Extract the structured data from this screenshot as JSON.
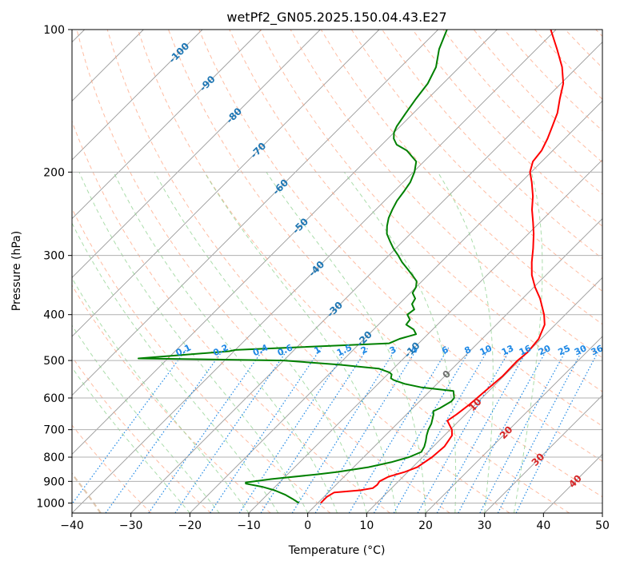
{
  "chart_data": {
    "type": "line",
    "chart_kind": "skew-t log-p diagram",
    "title": "wetPf2_GN05.2025.150.04.43.E27",
    "xlabel": "Temperature (°C)",
    "ylabel": "Pressure (hPa)",
    "xlim": [
      -40,
      50
    ],
    "ylim": [
      1050,
      100
    ],
    "y_scale": "log",
    "grid": true,
    "x_ticks": [
      -40,
      -30,
      -20,
      -10,
      0,
      10,
      20,
      30,
      40,
      50
    ],
    "x_tick_labels": [
      "−40",
      "−30",
      "−20",
      "−10",
      "0",
      "10",
      "20",
      "30",
      "40",
      "50"
    ],
    "y_ticks": [
      1000,
      900,
      800,
      700,
      600,
      500,
      400,
      300,
      200,
      100
    ],
    "y_tick_labels": [
      "1000",
      "900",
      "800",
      "700",
      "600",
      "500",
      "400",
      "300",
      "200",
      "100"
    ],
    "series": [
      {
        "role": "temperature",
        "color": "#ff0000",
        "points": [
          [
            1000,
            0.5
          ],
          [
            970,
            0.5
          ],
          [
            950,
            1.0
          ],
          [
            940,
            5.0
          ],
          [
            930,
            6.8
          ],
          [
            915,
            7.0
          ],
          [
            900,
            6.8
          ],
          [
            880,
            7.5
          ],
          [
            860,
            9.5
          ],
          [
            840,
            10.8
          ],
          [
            800,
            11.6
          ],
          [
            760,
            11.9
          ],
          [
            720,
            11.3
          ],
          [
            700,
            10.3
          ],
          [
            670,
            8.0
          ],
          [
            650,
            8.5
          ],
          [
            620,
            9.0
          ],
          [
            600,
            9.2
          ],
          [
            570,
            9.5
          ],
          [
            540,
            9.8
          ],
          [
            500,
            9.7
          ],
          [
            480,
            10.0
          ],
          [
            450,
            9.6
          ],
          [
            420,
            8.2
          ],
          [
            400,
            6.4
          ],
          [
            370,
            3.0
          ],
          [
            350,
            0.2
          ],
          [
            330,
            -2.4
          ],
          [
            310,
            -4.6
          ],
          [
            290,
            -6.7
          ],
          [
            270,
            -9.1
          ],
          [
            255,
            -11.2
          ],
          [
            240,
            -13.5
          ],
          [
            225,
            -15.6
          ],
          [
            210,
            -18.2
          ],
          [
            200,
            -20.2
          ],
          [
            190,
            -21.5
          ],
          [
            180,
            -21.9
          ],
          [
            170,
            -22.9
          ],
          [
            160,
            -24.2
          ],
          [
            150,
            -25.6
          ],
          [
            140,
            -27.6
          ],
          [
            130,
            -29.6
          ],
          [
            120,
            -32.6
          ],
          [
            110,
            -36.5
          ],
          [
            100,
            -40.9
          ]
        ]
      },
      {
        "role": "dewpoint",
        "color": "#008000",
        "points": [
          [
            1000,
            -3.2
          ],
          [
            980,
            -5.0
          ],
          [
            960,
            -7.0
          ],
          [
            940,
            -9.5
          ],
          [
            925,
            -12.0
          ],
          [
            910,
            -15.5
          ],
          [
            905,
            -15.7
          ],
          [
            890,
            -12.0
          ],
          [
            870,
            -5.0
          ],
          [
            860,
            -2.0
          ],
          [
            840,
            2.5
          ],
          [
            820,
            5.5
          ],
          [
            800,
            7.7
          ],
          [
            780,
            8.9
          ],
          [
            760,
            8.5
          ],
          [
            740,
            7.8
          ],
          [
            720,
            7.0
          ],
          [
            700,
            6.3
          ],
          [
            680,
            5.8
          ],
          [
            650,
            4.6
          ],
          [
            640,
            4.0
          ],
          [
            630,
            4.6
          ],
          [
            610,
            5.4
          ],
          [
            600,
            5.3
          ],
          [
            580,
            4.0
          ],
          [
            570,
            -2.0
          ],
          [
            560,
            -5.5
          ],
          [
            550,
            -8.0
          ],
          [
            545,
            -8.8
          ],
          [
            535,
            -9.3
          ],
          [
            530,
            -10.0
          ],
          [
            520,
            -12.5
          ],
          [
            510,
            -20.0
          ],
          [
            500,
            -30.0
          ],
          [
            495,
            -55.0
          ],
          [
            478,
            -40.8
          ],
          [
            475,
            -40.0
          ],
          [
            460,
            -15.0
          ],
          [
            450,
            -14.0
          ],
          [
            440,
            -12.0
          ],
          [
            430,
            -13.2
          ],
          [
            420,
            -15.3
          ],
          [
            410,
            -15.5
          ],
          [
            400,
            -16.8
          ],
          [
            390,
            -16.5
          ],
          [
            380,
            -17.8
          ],
          [
            370,
            -18.2
          ],
          [
            360,
            -19.6
          ],
          [
            350,
            -20.0
          ],
          [
            340,
            -20.9
          ],
          [
            330,
            -22.7
          ],
          [
            320,
            -24.6
          ],
          [
            310,
            -26.6
          ],
          [
            300,
            -28.4
          ],
          [
            290,
            -30.4
          ],
          [
            280,
            -32.2
          ],
          [
            270,
            -34.0
          ],
          [
            260,
            -35.3
          ],
          [
            250,
            -36.4
          ],
          [
            240,
            -37.2
          ],
          [
            230,
            -37.9
          ],
          [
            220,
            -38.3
          ],
          [
            210,
            -38.8
          ],
          [
            200,
            -39.8
          ],
          [
            190,
            -41.3
          ],
          [
            180,
            -44.8
          ],
          [
            175,
            -47.5
          ],
          [
            170,
            -49.0
          ],
          [
            165,
            -50.0
          ],
          [
            160,
            -50.6
          ],
          [
            150,
            -51.3
          ],
          [
            140,
            -52.0
          ],
          [
            130,
            -52.6
          ],
          [
            120,
            -54.0
          ],
          [
            110,
            -56.5
          ],
          [
            100,
            -58.5
          ]
        ]
      }
    ],
    "dry_adiabats_theta_c": [
      -30,
      -20,
      -10,
      0,
      10,
      20,
      30,
      40,
      50,
      60,
      70,
      80,
      90,
      100,
      110,
      120,
      130,
      140,
      150,
      160,
      170,
      180,
      190,
      200
    ],
    "moist_adiabats_c": [
      -20,
      -15,
      -10,
      -5,
      0,
      5,
      10,
      15,
      20,
      25,
      30,
      35
    ],
    "mixing_ratio_lines": {
      "labels": [
        "0.1",
        "0.2",
        "0.4",
        "0.6",
        "1",
        "1.5",
        "2",
        "3",
        "4",
        "6",
        "8",
        "10",
        "13",
        "16",
        "20",
        "25",
        "30",
        "36"
      ],
      "values": [
        0.1,
        0.2,
        0.4,
        0.6,
        1,
        1.5,
        2,
        3,
        4,
        6,
        8,
        10,
        13,
        16,
        20,
        25,
        30,
        36
      ],
      "label_pressure_hpa": 480,
      "top_hpa": 470,
      "color": "#1e88e5"
    },
    "isotherm_labels": {
      "blue": [
        "-100",
        "-90",
        "-80",
        "-70",
        "-60",
        "-50",
        "-40",
        "-30",
        "-20",
        "-10"
      ],
      "gray": [
        "0"
      ],
      "red": [
        "10",
        "20",
        "30",
        "40"
      ]
    },
    "colors": {
      "isotherm": "#999999",
      "dry_adiabat": "#ffa07a",
      "moist_adiabat": "#8fd18f",
      "blue_label": "#1f77b4",
      "gray_label": "#707070",
      "red_label": "#d62728",
      "tan_curve": "#d9b999"
    }
  }
}
